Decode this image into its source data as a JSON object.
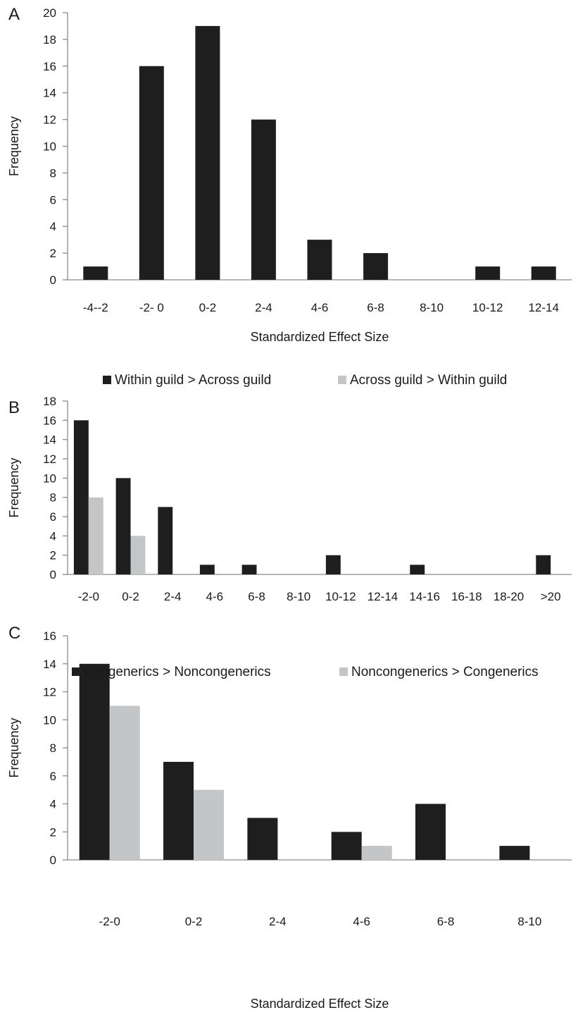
{
  "colors": {
    "series_primary": "#1e1e1e",
    "series_secondary": "#c4c5c7",
    "axis": "#8a8a8a",
    "text": "#1a1a1a"
  },
  "chart_data": [
    {
      "panel": "A",
      "type": "bar",
      "categories": [
        "-4--2",
        "-2- 0",
        "0-2",
        "2-4",
        "4-6",
        "6-8",
        "8-10",
        "10-12",
        "12-14"
      ],
      "series": [
        {
          "values": [
            1,
            16,
            19,
            12,
            3,
            2,
            0,
            1,
            1
          ]
        }
      ],
      "xlabel": "Standardized Effect Size",
      "ylabel": "Frequency",
      "ylim": [
        0,
        20
      ],
      "yticks": [
        0,
        2,
        4,
        6,
        8,
        10,
        12,
        14,
        16,
        18,
        20
      ],
      "legend": "none",
      "grid": false
    },
    {
      "panel": "B",
      "type": "bar",
      "categories": [
        "-2-0",
        "0-2",
        "2-4",
        "4-6",
        "6-8",
        "8-10",
        "10-12",
        "12-14",
        "14-16",
        "16-18",
        "18-20",
        ">20"
      ],
      "series": [
        {
          "name": "Within guild > Across guild",
          "values": [
            16,
            10,
            7,
            1,
            1,
            0,
            2,
            0,
            1,
            0,
            0,
            2
          ]
        },
        {
          "name": "Across guild > Within guild",
          "values": [
            8,
            4,
            0,
            0,
            0,
            0,
            0,
            0,
            0,
            0,
            0,
            0
          ]
        }
      ],
      "xlabel": "",
      "ylabel": "Frequency",
      "ylim": [
        0,
        18
      ],
      "yticks": [
        0,
        2,
        4,
        6,
        8,
        10,
        12,
        14,
        16,
        18
      ],
      "legend": "top",
      "grid": false
    },
    {
      "panel": "C",
      "type": "bar",
      "categories": [
        "-2-0",
        "0-2",
        "2-4",
        "4-6",
        "6-8",
        "8-10"
      ],
      "series": [
        {
          "name": "Congenerics > Noncongenerics",
          "values": [
            14,
            7,
            3,
            2,
            4,
            1
          ]
        },
        {
          "name": "Noncongenerics > Congenerics",
          "values": [
            11,
            5,
            0,
            1,
            0,
            0
          ]
        }
      ],
      "xlabel": "Standardized Effect Size",
      "ylabel": "Frequency",
      "ylim": [
        0,
        16
      ],
      "yticks": [
        0,
        2,
        4,
        6,
        8,
        10,
        12,
        14,
        16
      ],
      "legend": "top",
      "grid": false
    }
  ]
}
